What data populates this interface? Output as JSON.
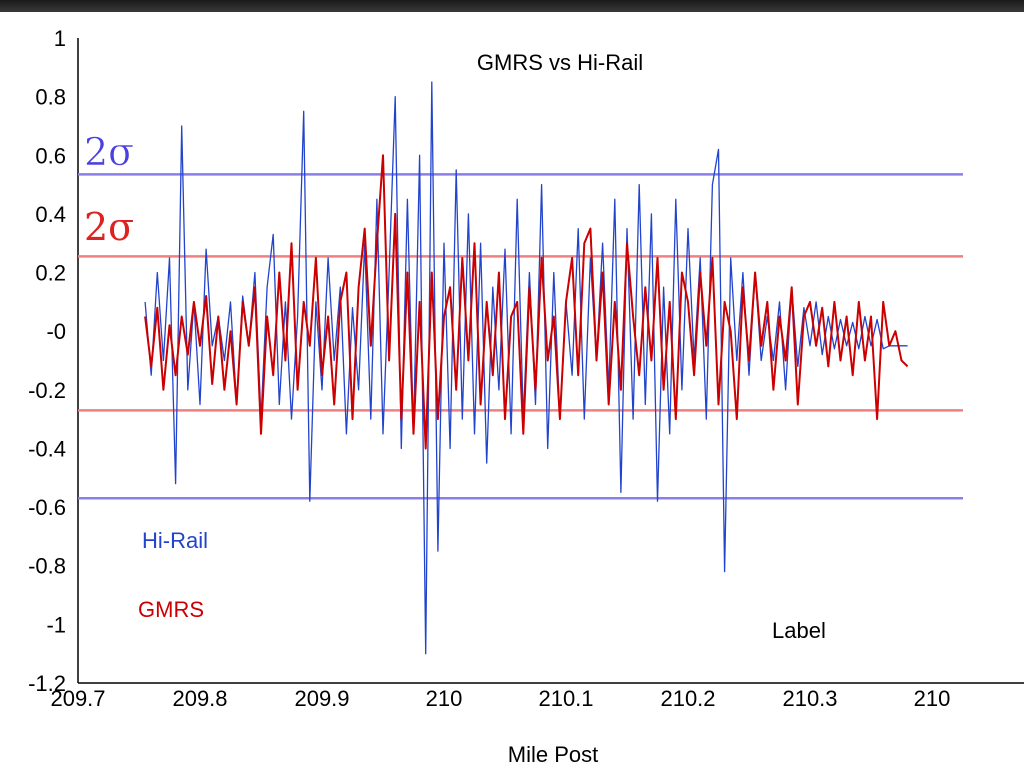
{
  "chart_data": {
    "type": "line",
    "title": "GMRS vs Hi-Rail",
    "xlabel": "Mile Post",
    "ylabel": "",
    "xlim": [
      209.7,
      210.4
    ],
    "ylim": [
      -1.2,
      1
    ],
    "x_ticks": [
      "209.7",
      "209.8",
      "209.9",
      "210",
      "210.1",
      "210.2",
      "210.3",
      "210"
    ],
    "y_ticks": [
      "1",
      "0.8",
      "0.6",
      "0.4",
      "0.2",
      "-0",
      "-0.2",
      "-0.4",
      "-0.6",
      "-0.8",
      "-1",
      "-1.2"
    ],
    "grid": false,
    "colors": {
      "hirail": "#2244cc",
      "gmrs": "#cc0000",
      "hirail_band": "#8a7fe8",
      "gmrs_band": "#f08080"
    },
    "sigma_lines": {
      "hirail": {
        "label": "2σ",
        "upper": 0.535,
        "lower": -0.57
      },
      "gmrs": {
        "label": "2σ",
        "upper": 0.255,
        "lower": -0.27
      }
    },
    "legend": {
      "hirail": "Hi-Rail",
      "gmrs": "GMRS"
    },
    "annotation": "Label",
    "series": [
      {
        "name": "Hi-Rail",
        "x": [
          209.755,
          209.76,
          209.765,
          209.77,
          209.775,
          209.78,
          209.785,
          209.79,
          209.795,
          209.8,
          209.805,
          209.81,
          209.815,
          209.82,
          209.825,
          209.83,
          209.835,
          209.84,
          209.845,
          209.85,
          209.855,
          209.86,
          209.865,
          209.87,
          209.875,
          209.88,
          209.885,
          209.89,
          209.895,
          209.9,
          209.905,
          209.91,
          209.915,
          209.92,
          209.925,
          209.93,
          209.935,
          209.94,
          209.945,
          209.95,
          209.955,
          209.96,
          209.965,
          209.97,
          209.975,
          209.98,
          209.985,
          209.99,
          209.995,
          210.0,
          210.005,
          210.01,
          210.015,
          210.02,
          210.025,
          210.03,
          210.035,
          210.04,
          210.045,
          210.05,
          210.055,
          210.06,
          210.065,
          210.07,
          210.075,
          210.08,
          210.085,
          210.09,
          210.095,
          210.1,
          210.105,
          210.11,
          210.115,
          210.12,
          210.125,
          210.13,
          210.135,
          210.14,
          210.145,
          210.15,
          210.155,
          210.16,
          210.165,
          210.17,
          210.175,
          210.18,
          210.185,
          210.19,
          210.195,
          210.2,
          210.205,
          210.21,
          210.215,
          210.22,
          210.225,
          210.23,
          210.235,
          210.24,
          210.245,
          210.25,
          210.255,
          210.26,
          210.265,
          210.27,
          210.275,
          210.28,
          210.285,
          210.29,
          210.295,
          210.3,
          210.305,
          210.31,
          210.315,
          210.32,
          210.325,
          210.33,
          210.335,
          210.34,
          210.345,
          210.35,
          210.355,
          210.36,
          210.365,
          210.37,
          210.375,
          210.38
        ],
        "values": [
          0.1,
          -0.15,
          0.2,
          -0.1,
          0.25,
          -0.52,
          0.7,
          -0.2,
          0.1,
          -0.25,
          0.28,
          -0.05,
          0.05,
          -0.1,
          0.1,
          -0.25,
          0.12,
          -0.05,
          0.2,
          -0.3,
          0.15,
          0.33,
          -0.25,
          0.1,
          -0.3,
          0.05,
          0.75,
          -0.58,
          0.1,
          -0.2,
          0.25,
          -0.1,
          0.15,
          -0.35,
          0.08,
          -0.2,
          0.3,
          -0.3,
          0.45,
          -0.35,
          0.2,
          0.8,
          -0.4,
          0.45,
          -0.35,
          0.6,
          -1.1,
          0.85,
          -0.75,
          0.3,
          -0.4,
          0.55,
          -0.3,
          0.4,
          -0.35,
          0.3,
          -0.45,
          0.15,
          -0.2,
          0.28,
          -0.35,
          0.45,
          -0.3,
          0.2,
          -0.25,
          0.5,
          -0.4,
          0.2,
          -0.3,
          0.1,
          -0.15,
          0.35,
          -0.3,
          0.25,
          -0.1,
          0.3,
          -0.2,
          0.45,
          -0.55,
          0.35,
          -0.3,
          0.5,
          -0.25,
          0.4,
          -0.58,
          0.15,
          -0.35,
          0.45,
          -0.2,
          0.35,
          -0.1,
          0.25,
          -0.3,
          0.5,
          0.62,
          -0.82,
          0.25,
          -0.1,
          0.2,
          -0.15,
          0.2,
          -0.1,
          0.05,
          -0.1,
          0.1,
          -0.2,
          0.15,
          -0.12,
          0.08,
          -0.05,
          0.1,
          -0.08,
          0.05,
          -0.06,
          0.04,
          -0.05,
          0.03,
          -0.06,
          0.05,
          -0.05,
          0.04,
          -0.06,
          -0.05,
          -0.05,
          -0.05,
          -0.05
        ]
      },
      {
        "name": "GMRS",
        "x": [
          209.755,
          209.76,
          209.765,
          209.77,
          209.775,
          209.78,
          209.785,
          209.79,
          209.795,
          209.8,
          209.805,
          209.81,
          209.815,
          209.82,
          209.825,
          209.83,
          209.835,
          209.84,
          209.845,
          209.85,
          209.855,
          209.86,
          209.865,
          209.87,
          209.875,
          209.88,
          209.885,
          209.89,
          209.895,
          209.9,
          209.905,
          209.91,
          209.915,
          209.92,
          209.925,
          209.93,
          209.935,
          209.94,
          209.945,
          209.95,
          209.955,
          209.96,
          209.965,
          209.97,
          209.975,
          209.98,
          209.985,
          209.99,
          209.995,
          210.0,
          210.005,
          210.01,
          210.015,
          210.02,
          210.025,
          210.03,
          210.035,
          210.04,
          210.045,
          210.05,
          210.055,
          210.06,
          210.065,
          210.07,
          210.075,
          210.08,
          210.085,
          210.09,
          210.095,
          210.1,
          210.105,
          210.11,
          210.115,
          210.12,
          210.125,
          210.13,
          210.135,
          210.14,
          210.145,
          210.15,
          210.155,
          210.16,
          210.165,
          210.17,
          210.175,
          210.18,
          210.185,
          210.19,
          210.195,
          210.2,
          210.205,
          210.21,
          210.215,
          210.22,
          210.225,
          210.23,
          210.235,
          210.24,
          210.245,
          210.25,
          210.255,
          210.26,
          210.265,
          210.27,
          210.275,
          210.28,
          210.285,
          210.29,
          210.295,
          210.3,
          210.305,
          210.31,
          210.315,
          210.32,
          210.325,
          210.33,
          210.335,
          210.34,
          210.345,
          210.35,
          210.355,
          210.36,
          210.365,
          210.37,
          210.375,
          210.38
        ],
        "values": [
          0.05,
          -0.12,
          0.08,
          -0.2,
          0.02,
          -0.15,
          0.05,
          -0.08,
          0.1,
          -0.05,
          0.12,
          -0.18,
          0.05,
          -0.2,
          0.0,
          -0.25,
          0.1,
          -0.05,
          0.15,
          -0.35,
          0.05,
          -0.15,
          0.2,
          -0.1,
          0.3,
          -0.2,
          0.1,
          -0.05,
          0.25,
          -0.15,
          0.05,
          -0.25,
          0.1,
          0.2,
          -0.3,
          0.15,
          0.35,
          -0.05,
          0.3,
          0.6,
          -0.1,
          0.4,
          -0.3,
          0.2,
          -0.35,
          0.1,
          -0.4,
          0.2,
          -0.3,
          0.05,
          0.15,
          -0.2,
          0.25,
          -0.1,
          0.3,
          -0.25,
          0.1,
          -0.15,
          0.2,
          -0.3,
          0.05,
          0.1,
          -0.35,
          0.15,
          -0.2,
          0.25,
          -0.1,
          0.05,
          -0.3,
          0.1,
          0.25,
          -0.15,
          0.3,
          0.35,
          -0.1,
          0.2,
          -0.25,
          0.1,
          -0.2,
          0.3,
          0.05,
          -0.15,
          0.15,
          -0.1,
          0.25,
          -0.2,
          0.1,
          -0.3,
          0.2,
          0.1,
          -0.15,
          0.2,
          -0.05,
          0.25,
          -0.25,
          0.1,
          0.0,
          -0.3,
          0.15,
          -0.1,
          0.2,
          -0.05,
          0.1,
          -0.2,
          0.05,
          -0.1,
          0.15,
          -0.25,
          0.05,
          0.1,
          -0.05,
          0.08,
          -0.12,
          0.1,
          -0.1,
          0.05,
          -0.15,
          0.1,
          -0.1,
          0.05,
          -0.3,
          0.1,
          -0.05,
          0.0,
          -0.1,
          -0.12
        ]
      }
    ]
  }
}
